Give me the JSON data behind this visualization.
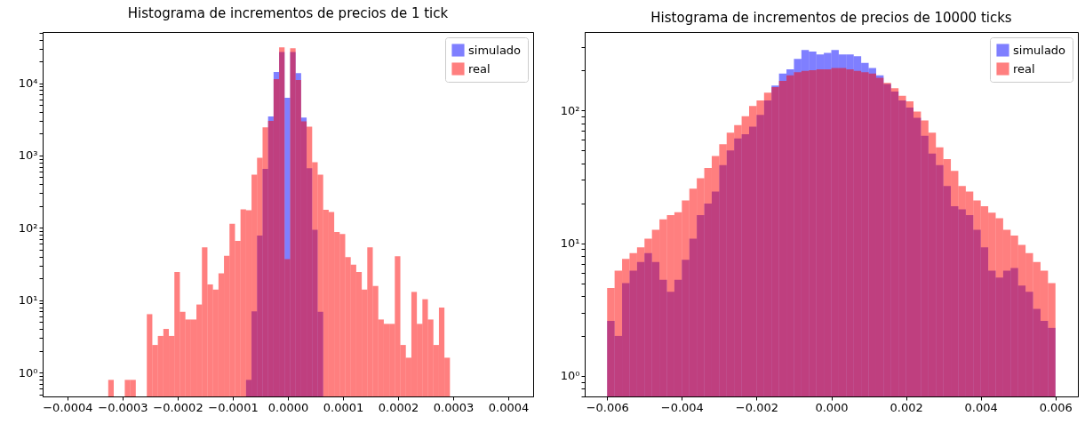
{
  "chart_data": [
    {
      "type": "histogram",
      "title": "Histograma de incrementos de precios de 1 tick",
      "log": "y",
      "legend": "top right",
      "bins": [
        -0.000326,
        -0.000316,
        -0.000306,
        -0.000296,
        -0.000286,
        -0.000276,
        -0.000266,
        -0.000256,
        -0.000246,
        -0.000236,
        -0.000226,
        -0.000216,
        -0.000206,
        -0.000196,
        -0.000186,
        -0.000176,
        -0.000166,
        -0.000156,
        -0.000146,
        -0.000136,
        -0.000126,
        -0.000116,
        -0.000106,
        -9.6e-05,
        -8.6e-05,
        -7.6e-05,
        -6.6e-05,
        -5.6e-05,
        -4.6e-05,
        -3.6e-05,
        -2.6e-05,
        -1.6e-05,
        -6e-06,
        4e-06,
        1.4e-05,
        2.4e-05,
        3.4e-05,
        4.4e-05,
        5.4e-05,
        6.4e-05,
        7.4e-05,
        8.4e-05,
        9.4e-05,
        0.000104,
        0.000114,
        0.000124,
        0.000134,
        0.000144,
        0.000154,
        0.000164,
        0.000174,
        0.000184,
        0.000194,
        0.000204,
        0.000214,
        0.000224,
        0.000234,
        0.000244,
        0.000254,
        0.000264,
        0.000274,
        0.000284,
        0.000294
      ],
      "series": [
        {
          "name": "simulado",
          "color": "#0000ff",
          "values": [
            null,
            null,
            null,
            null,
            null,
            null,
            null,
            null,
            null,
            null,
            null,
            null,
            null,
            null,
            null,
            null,
            null,
            null,
            null,
            null,
            null,
            null,
            null,
            null,
            null,
            0.79,
            7,
            78,
            655,
            3470,
            14300,
            27000,
            6300,
            27000,
            13800,
            3350,
            667,
            94,
            6.9,
            null,
            null,
            null,
            null,
            null,
            null,
            null,
            null,
            null,
            null,
            null,
            null,
            null,
            null,
            null,
            null,
            null,
            null,
            null,
            null,
            null,
            null,
            null
          ]
        },
        {
          "name": "real",
          "color": "#ff0000",
          "values": [
            0.79,
            null,
            null,
            0.79,
            0.79,
            null,
            null,
            6.4,
            2.4,
            3.2,
            4.0,
            3.2,
            24.5,
            6.9,
            5.4,
            5.4,
            8.7,
            53.6,
            16.5,
            14,
            23.4,
            41.2,
            114,
            66,
            180,
            175,
            542,
            927,
            2450,
            3020,
            11400,
            31300,
            36.8,
            30500,
            11100,
            2960,
            2500,
            805,
            542,
            178,
            166,
            87.6,
            82,
            39.3,
            31,
            24.5,
            14,
            53.6,
            15.7,
            5.4,
            4.7,
            4.7,
            40.4,
            2.4,
            1.6,
            13,
            4.7,
            10.3,
            5.4,
            2.4,
            7.9,
            1.6
          ]
        }
      ],
      "xlim": [
        -0.000445,
        0.000445
      ],
      "xticks": [
        {
          "value": -0.0004,
          "label": "−0.0004"
        },
        {
          "value": -0.0003,
          "label": "−0.0003"
        },
        {
          "value": -0.0002,
          "label": "−0.0002"
        },
        {
          "value": -0.0001,
          "label": "−0.0001"
        },
        {
          "value": 0,
          "label": "0.0000"
        },
        0.0001,
        0.0002,
        0.0003,
        0.0004
      ],
      "ylim": [
        0.466,
        51000
      ],
      "yticks": [
        {
          "value": 0.5,
          "label": null
        },
        {
          "value": 0.6,
          "label": null
        },
        {
          "value": 0.7,
          "label": null
        },
        {
          "value": 0.8,
          "label": null
        },
        {
          "value": 0.9,
          "label": null
        },
        {
          "value": 1,
          "label": "10⁰"
        },
        {
          "value": 2,
          "label": null
        },
        {
          "value": 3,
          "label": null
        },
        {
          "value": 4,
          "label": null
        },
        {
          "value": 5,
          "label": null
        },
        {
          "value": 6,
          "label": null
        },
        {
          "value": 7,
          "label": null
        },
        {
          "value": 8,
          "label": null
        },
        {
          "value": 9,
          "label": null
        },
        {
          "value": 10,
          "label": "10¹"
        },
        {
          "value": 20,
          "label": null
        },
        {
          "value": 30,
          "label": null
        },
        {
          "value": 40,
          "label": null
        },
        {
          "value": 50,
          "label": null
        },
        {
          "value": 60,
          "label": null
        },
        {
          "value": 70,
          "label": null
        },
        {
          "value": 80,
          "label": null
        },
        {
          "value": 90,
          "label": null
        },
        {
          "value": 100,
          "label": "10²"
        },
        {
          "value": 200,
          "label": null
        },
        {
          "value": 300,
          "label": null
        },
        {
          "value": 400,
          "label": null
        },
        {
          "value": 500,
          "label": null
        },
        {
          "value": 600,
          "label": null
        },
        {
          "value": 700,
          "label": null
        },
        {
          "value": 800,
          "label": null
        },
        {
          "value": 900,
          "label": null
        },
        {
          "value": 1000,
          "label": "10³"
        },
        {
          "value": 2000,
          "label": null
        },
        {
          "value": 3000,
          "label": null
        },
        {
          "value": 4000,
          "label": null
        },
        {
          "value": 5000,
          "label": null
        },
        {
          "value": 6000,
          "label": null
        },
        {
          "value": 7000,
          "label": null
        },
        {
          "value": 8000,
          "label": null
        },
        {
          "value": 9000,
          "label": null
        },
        {
          "value": 10000,
          "label": "10⁴"
        },
        {
          "value": 20000,
          "label": null
        },
        {
          "value": 30000,
          "label": null
        },
        {
          "value": 40000,
          "label": null
        },
        {
          "value": 50000,
          "label": null
        }
      ]
    },
    {
      "type": "histogram",
      "title": "Histograma de incrementos de precios de 10000 ticks",
      "log": "y",
      "legend": "top right",
      "bins": [
        -0.006,
        -0.0058,
        -0.0056,
        -0.0054,
        -0.0052,
        -0.005,
        -0.0048,
        -0.0046,
        -0.0044,
        -0.0042,
        -0.004,
        -0.0038,
        -0.0036,
        -0.0034,
        -0.0032,
        -0.003,
        -0.0028,
        -0.0026,
        -0.0024,
        -0.0022,
        -0.002,
        -0.0018,
        -0.0016,
        -0.0014,
        -0.0012,
        -0.001,
        -0.0008,
        -0.0006,
        -0.0004,
        -0.0002,
        0,
        0.0002,
        0.0004,
        0.0006,
        0.0008,
        0.001,
        0.0012,
        0.0014,
        0.0016,
        0.0018,
        0.002,
        0.0022,
        0.0024,
        0.0026,
        0.0028,
        0.003,
        0.0032,
        0.0034,
        0.0036,
        0.0038,
        0.004,
        0.0042,
        0.0044,
        0.0046,
        0.0048,
        0.005,
        0.0052,
        0.0054,
        0.0056,
        0.0058,
        0.006
      ],
      "series": [
        {
          "name": "simulado",
          "color": "#0000ff",
          "values": [
            2.6,
            2.0,
            5.0,
            6.2,
            7.2,
            8.4,
            7.2,
            5.3,
            4.3,
            5.3,
            7.5,
            10.8,
            16.3,
            19.9,
            24.5,
            38.8,
            50,
            61.6,
            66.3,
            75.5,
            92.6,
            119,
            154,
            190,
            204,
            245,
            285,
            278,
            264,
            271,
            285,
            264,
            264,
            256,
            228,
            209,
            184,
            158,
            139,
            119,
            105,
            88,
            64.5,
            47.4,
            38.8,
            27,
            19,
            18,
            16.3,
            12.6,
            9.3,
            6.2,
            5.5,
            6.2,
            6.5,
            4.8,
            4.3,
            3.2,
            2.6,
            2.3
          ]
        },
        {
          "name": "real",
          "color": "#ff0000",
          "values": [
            4.6,
            6.2,
            7.6,
            8.4,
            9.3,
            10.8,
            12.6,
            15.1,
            16.3,
            17.1,
            21,
            25.7,
            30.9,
            36.8,
            45.3,
            55.6,
            68,
            77.5,
            90.3,
            108,
            119,
            136,
            150,
            167,
            184,
            194,
            199,
            201,
            204,
            204,
            209,
            209,
            204,
            199,
            194,
            190,
            176,
            161,
            147,
            129,
            117,
            98,
            84,
            68,
            52.8,
            43,
            35,
            27,
            24.5,
            21,
            19,
            17,
            15.4,
            12.6,
            11.4,
            9.7,
            8.4,
            7.2,
            6.2,
            5.0
          ]
        }
      ],
      "xlim": [
        -0.0066,
        0.0066
      ],
      "xticks": [
        {
          "value": -0.006,
          "label": "−0.006"
        },
        {
          "value": -0.004,
          "label": "−0.004"
        },
        {
          "value": -0.002,
          "label": "−0.002"
        },
        {
          "value": 0,
          "label": "0.000"
        },
        0.002,
        0.004,
        0.006
      ],
      "ylim": [
        0.7,
        390
      ],
      "yticks": [
        {
          "value": 0.7,
          "label": null
        },
        {
          "value": 0.8,
          "label": null
        },
        {
          "value": 0.9,
          "label": null
        },
        {
          "value": 1,
          "label": "10⁰"
        },
        {
          "value": 2,
          "label": null
        },
        {
          "value": 3,
          "label": null
        },
        {
          "value": 4,
          "label": null
        },
        {
          "value": 5,
          "label": null
        },
        {
          "value": 6,
          "label": null
        },
        {
          "value": 7,
          "label": null
        },
        {
          "value": 8,
          "label": null
        },
        {
          "value": 9,
          "label": null
        },
        {
          "value": 10,
          "label": "10¹"
        },
        {
          "value": 20,
          "label": null
        },
        {
          "value": 30,
          "label": null
        },
        {
          "value": 40,
          "label": null
        },
        {
          "value": 50,
          "label": null
        },
        {
          "value": 60,
          "label": null
        },
        {
          "value": 70,
          "label": null
        },
        {
          "value": 80,
          "label": null
        },
        {
          "value": 90,
          "label": null
        },
        {
          "value": 100,
          "label": "10²"
        },
        {
          "value": 200,
          "label": null
        },
        {
          "value": 300,
          "label": null
        }
      ]
    }
  ]
}
